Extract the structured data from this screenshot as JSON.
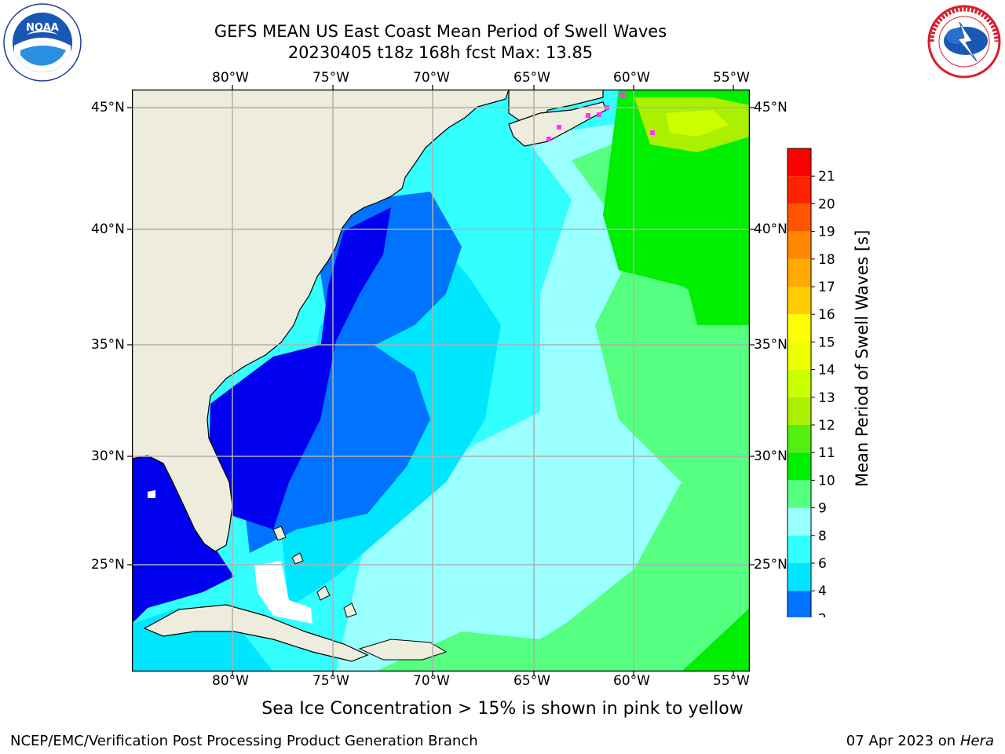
{
  "header": {
    "title_line1": "GEFS MEAN US East Coast Mean Period of Swell Waves",
    "title_line2": "20230405 t18z 168h fcst   Max: 13.85"
  },
  "logos": {
    "left": {
      "icon": "noaa-logo-icon",
      "text": "NOAA",
      "ring_text": "NATIONAL OCEANIC AND ATMOSPHERIC ADMINISTRATION · U.S. DEPARTMENT OF COMMERCE"
    },
    "right": {
      "icon": "nws-logo-icon",
      "ring_text": "NATIONAL WEATHER SERVICE"
    }
  },
  "map": {
    "lon_ticks": [
      "80°W",
      "75°W",
      "70°W",
      "65°W",
      "60°W",
      "55°W"
    ],
    "lat_ticks": [
      "45°N",
      "40°N",
      "35°N",
      "30°N",
      "25°N"
    ],
    "colors": {
      "land": "#eeecdc",
      "grid": "#b0b0b0",
      "coast": "#000000",
      "ice": "#ff33ff"
    }
  },
  "colorbar": {
    "label": "Mean Period of Swell Waves [s]",
    "ticks": [
      "2",
      "4",
      "6",
      "8",
      "9",
      "10",
      "11",
      "12",
      "13",
      "14",
      "15",
      "16",
      "17",
      "18",
      "19",
      "20",
      "21"
    ],
    "under_color": "#0000ee",
    "bins": [
      {
        "from": 2,
        "to": 4,
        "color": "#0073ff"
      },
      {
        "from": 4,
        "to": 6,
        "color": "#00e6ff"
      },
      {
        "from": 6,
        "to": 8,
        "color": "#33ffff"
      },
      {
        "from": 8,
        "to": 9,
        "color": "#99ffff"
      },
      {
        "from": 9,
        "to": 10,
        "color": "#55ff80"
      },
      {
        "from": 10,
        "to": 11,
        "color": "#00ee00"
      },
      {
        "from": 11,
        "to": 12,
        "color": "#55ee11"
      },
      {
        "from": 12,
        "to": 13,
        "color": "#aaf000"
      },
      {
        "from": 13,
        "to": 14,
        "color": "#ccff00"
      },
      {
        "from": 14,
        "to": 15,
        "color": "#eeff00"
      },
      {
        "from": 15,
        "to": 16,
        "color": "#ffff00"
      },
      {
        "from": 16,
        "to": 17,
        "color": "#ffcc00"
      },
      {
        "from": 17,
        "to": 18,
        "color": "#ffaa00"
      },
      {
        "from": 18,
        "to": 19,
        "color": "#ff8800"
      },
      {
        "from": 19,
        "to": 20,
        "color": "#ff5500"
      },
      {
        "from": 20,
        "to": 21,
        "color": "#ff2200"
      },
      {
        "from": 21,
        "to": 22,
        "color": "#ff0000"
      }
    ]
  },
  "footnote": "Sea Ice Concentration > 15% is shown in pink to yellow",
  "footer": {
    "left": "NCEP/EMC/Verification Post Processing Product Generation Branch",
    "right_date": "07 Apr 2023 on ",
    "right_machine": "Hera"
  }
}
